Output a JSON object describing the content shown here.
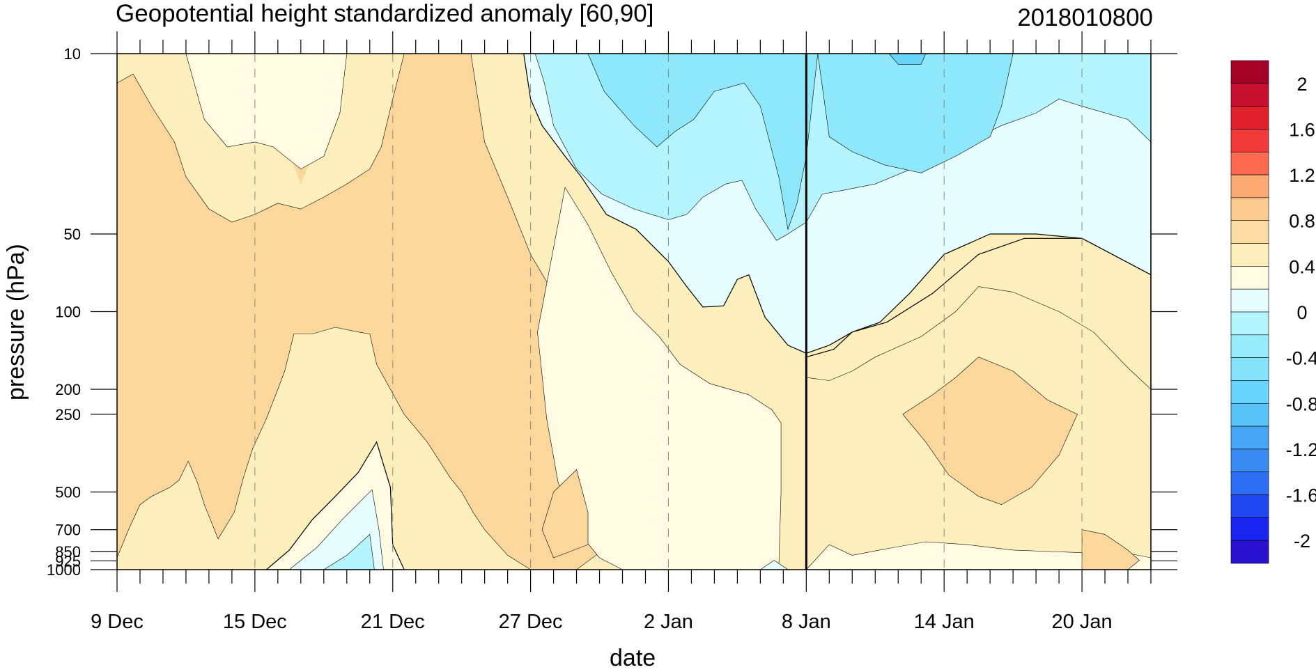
{
  "chart_data": {
    "type": "heatmap",
    "title": "Geopotential height standardized anomaly [60,90]",
    "title_right": "2018010800",
    "xlabel": "date",
    "ylabel": "pressure (hPa)",
    "x_tick_labels": [
      "9 Dec",
      "15 Dec",
      "21 Dec",
      "27 Dec",
      "2 Jan",
      "8 Jan",
      "14 Jan",
      "20 Jan"
    ],
    "x_tick_days": [
      0,
      6,
      12,
      18,
      24,
      30,
      36,
      42
    ],
    "x_range_days": [
      0,
      45
    ],
    "y_scale": "log",
    "y_tick_labels": [
      "10",
      "50",
      "100",
      "200",
      "250",
      "500",
      "700",
      "850",
      "925",
      "1000"
    ],
    "y_tick_values": [
      10,
      50,
      100,
      200,
      250,
      500,
      700,
      850,
      925,
      1000
    ],
    "y_range": [
      10,
      1000
    ],
    "vertical_marker": "8 Jan",
    "colorbar": {
      "labels": [
        "2",
        "1.6",
        "1.2",
        "0.8",
        "0.4",
        "0",
        "-0.4",
        "-0.8",
        "-1.2",
        "-1.6",
        "-2"
      ],
      "colors": [
        "#a50026",
        "#c8102e",
        "#e0202a",
        "#f23a3a",
        "#fd6a50",
        "#fcaa74",
        "#fccb8f",
        "#fcdca2",
        "#fdefbc",
        "#fefbe2",
        "#e6feff",
        "#b4f4fd",
        "#98ebfc",
        "#82e3fb",
        "#69d5fa",
        "#58c3f7",
        "#46a6f5",
        "#3a8cf5",
        "#2d6ef5",
        "#2048f2",
        "#1a24f0",
        "#2a10d0"
      ]
    },
    "colors": {
      "pos_low": "#fefbe2",
      "pos_mid": "#fdefbc",
      "pos_high": "#fcd79b",
      "neg_low": "#e6feff",
      "neg_mid": "#b4f4fd",
      "neg_high": "#8ee8fb",
      "neg_max": "#69d5fa"
    }
  }
}
